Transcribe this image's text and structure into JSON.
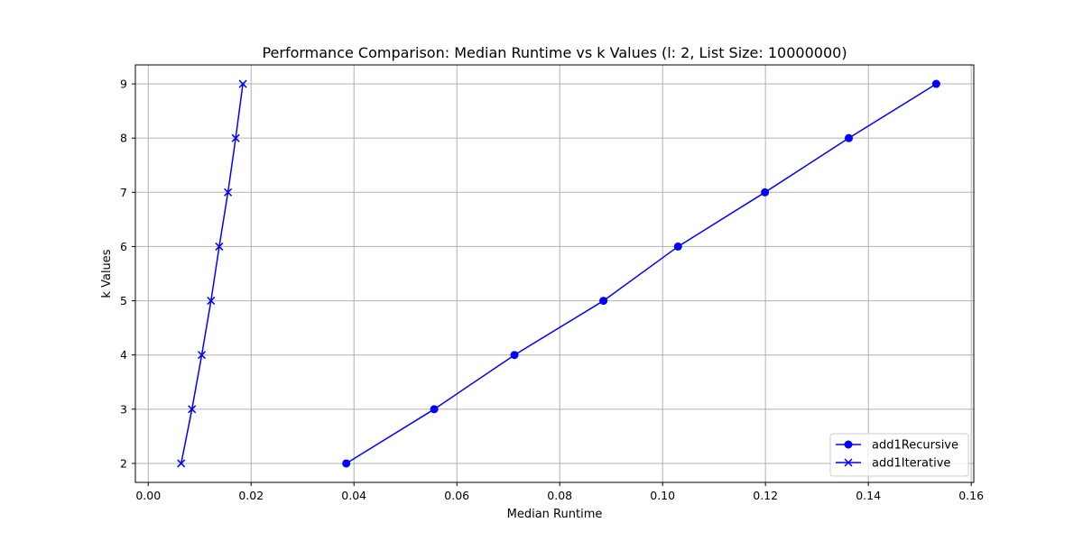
{
  "chart_data": {
    "type": "line",
    "title": "Performance Comparison: Median Runtime vs k Values (l: 2, List Size: 10000000)",
    "xlabel": "Median Runtime",
    "ylabel": "k Values",
    "xlim": [
      -0.0025,
      0.1605
    ],
    "ylim": [
      1.65,
      9.35
    ],
    "xticks": [
      0.0,
      0.02,
      0.04,
      0.06,
      0.08,
      0.1,
      0.12,
      0.14,
      0.16
    ],
    "xtick_labels": [
      "0.00",
      "0.02",
      "0.04",
      "0.06",
      "0.08",
      "0.10",
      "0.12",
      "0.14",
      "0.16"
    ],
    "yticks": [
      2,
      3,
      4,
      5,
      6,
      7,
      8,
      9
    ],
    "ytick_labels": [
      "2",
      "3",
      "4",
      "5",
      "6",
      "7",
      "8",
      "9"
    ],
    "grid": true,
    "legend_position": "bottom-right",
    "series": [
      {
        "name": "add1Recursive",
        "marker": "circle",
        "color": "#0000ff",
        "x": [
          0.0385,
          0.0556,
          0.0712,
          0.0885,
          0.103,
          0.1199,
          0.1362,
          0.1532
        ],
        "y": [
          2,
          3,
          4,
          5,
          6,
          7,
          8,
          9
        ]
      },
      {
        "name": "add1Iterative",
        "marker": "x",
        "color": "#0000ff",
        "x": [
          0.0064,
          0.0085,
          0.0104,
          0.0122,
          0.0138,
          0.0155,
          0.017,
          0.0184
        ],
        "y": [
          2,
          3,
          4,
          5,
          6,
          7,
          8,
          9
        ]
      }
    ]
  }
}
